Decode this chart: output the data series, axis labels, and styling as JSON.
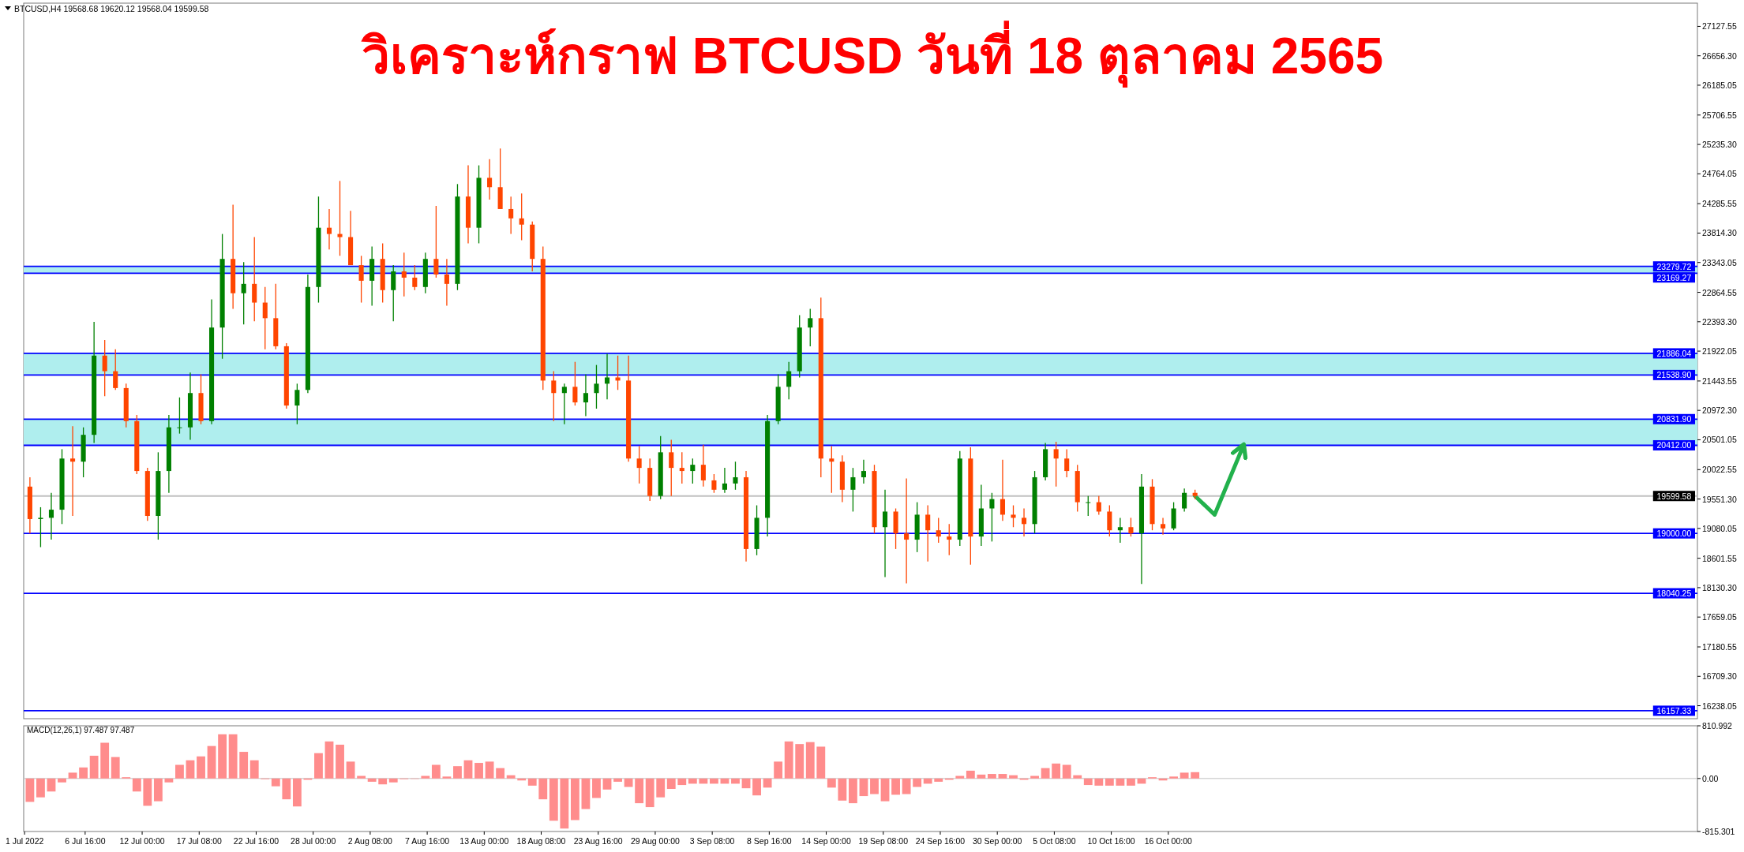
{
  "chart_data": [
    {
      "type": "candlestick",
      "title": "วิเคราะห์กราฟ BTCUSD วันที่ 18 ตุลาคม 2565",
      "annotations": [
        "BTCUSD,H4 19568.68 19620.12 19568.04 19599.58"
      ],
      "x": [
        "2022-07-01T12:00",
        "2022-07-02T12:00",
        "2022-07-03T12:00",
        "2022-07-04T12:00",
        "2022-07-05T12:00",
        "2022-07-06T12:00",
        "2022-07-07T12:00",
        "2022-07-08T12:00",
        "2022-07-09T12:00",
        "2022-07-10T12:00",
        "2022-07-11T12:00",
        "2022-07-12T12:00",
        "2022-07-13T12:00",
        "2022-07-14T12:00",
        "2022-07-15T12:00",
        "2022-07-16T12:00",
        "2022-07-17T12:00",
        "2022-07-18T12:00",
        "2022-07-19T12:00",
        "2022-07-20T12:00",
        "2022-07-21T12:00",
        "2022-07-22T12:00",
        "2022-07-23T12:00",
        "2022-07-24T12:00",
        "2022-07-25T12:00",
        "2022-07-26T12:00",
        "2022-07-27T12:00",
        "2022-07-28T12:00",
        "2022-07-29T12:00",
        "2022-07-30T12:00",
        "2022-07-31T12:00",
        "2022-08-01T12:00",
        "2022-08-02T12:00",
        "2022-08-03T12:00",
        "2022-08-04T12:00",
        "2022-08-05T12:00",
        "2022-08-06T12:00",
        "2022-08-07T12:00",
        "2022-08-08T12:00",
        "2022-08-09T12:00",
        "2022-08-10T12:00",
        "2022-08-11T12:00",
        "2022-08-12T12:00",
        "2022-08-13T12:00",
        "2022-08-14T12:00",
        "2022-08-15T12:00",
        "2022-08-16T12:00",
        "2022-08-17T12:00",
        "2022-08-18T12:00",
        "2022-08-19T12:00",
        "2022-08-20T12:00",
        "2022-08-21T12:00",
        "2022-08-22T12:00",
        "2022-08-23T12:00",
        "2022-08-24T12:00",
        "2022-08-25T12:00",
        "2022-08-26T12:00",
        "2022-08-27T12:00",
        "2022-08-28T12:00",
        "2022-08-29T12:00",
        "2022-08-30T12:00",
        "2022-08-31T12:00",
        "2022-09-01T12:00",
        "2022-09-02T12:00",
        "2022-09-03T12:00",
        "2022-09-04T12:00",
        "2022-09-05T12:00",
        "2022-09-06T12:00",
        "2022-09-07T12:00",
        "2022-09-08T12:00",
        "2022-09-09T12:00",
        "2022-09-10T12:00",
        "2022-09-11T12:00",
        "2022-09-12T12:00",
        "2022-09-13T12:00",
        "2022-09-14T12:00",
        "2022-09-15T12:00",
        "2022-09-16T12:00",
        "2022-09-17T12:00",
        "2022-09-18T12:00",
        "2022-09-19T12:00",
        "2022-09-20T12:00",
        "2022-09-21T12:00",
        "2022-09-22T12:00",
        "2022-09-23T12:00",
        "2022-09-24T12:00",
        "2022-09-25T12:00",
        "2022-09-26T12:00",
        "2022-09-27T12:00",
        "2022-09-28T12:00",
        "2022-09-29T12:00",
        "2022-09-30T12:00",
        "2022-10-01T12:00",
        "2022-10-02T12:00",
        "2022-10-03T12:00",
        "2022-10-04T12:00",
        "2022-10-05T12:00",
        "2022-10-06T12:00",
        "2022-10-07T12:00",
        "2022-10-08T12:00",
        "2022-10-09T12:00",
        "2022-10-10T12:00",
        "2022-10-11T12:00",
        "2022-10-12T12:00",
        "2022-10-13T12:00",
        "2022-10-14T12:00",
        "2022-10-15T12:00",
        "2022-10-16T12:00",
        "2022-10-17T12:00",
        "2022-10-18T12:00"
      ],
      "ohlc": [
        [
          19750,
          19900,
          19000,
          19230
        ],
        [
          19230,
          19420,
          18780,
          19250
        ],
        [
          19250,
          19650,
          18900,
          19380
        ],
        [
          19380,
          20350,
          19150,
          20200
        ],
        [
          20200,
          20720,
          19280,
          20150
        ],
        [
          20150,
          20700,
          19900,
          20580
        ],
        [
          20580,
          22390,
          20450,
          21850
        ],
        [
          21850,
          22100,
          21200,
          21600
        ],
        [
          21600,
          21950,
          21300,
          21330
        ],
        [
          21330,
          21400,
          20700,
          20800
        ],
        [
          20800,
          20900,
          19950,
          20000
        ],
        [
          20000,
          20050,
          19200,
          19280
        ],
        [
          19280,
          20300,
          18900,
          20000
        ],
        [
          20000,
          20900,
          19650,
          20700
        ],
        [
          20700,
          21180,
          20600,
          20700
        ],
        [
          20700,
          21580,
          20500,
          21250
        ],
        [
          21250,
          21550,
          20750,
          20800
        ],
        [
          20800,
          22750,
          20750,
          22300
        ],
        [
          22300,
          23800,
          21800,
          23400
        ],
        [
          23400,
          24270,
          22600,
          22850
        ],
        [
          22850,
          23350,
          22350,
          23000
        ],
        [
          23000,
          23750,
          22400,
          22700
        ],
        [
          22700,
          22950,
          21950,
          22450
        ],
        [
          22450,
          23000,
          21950,
          22000
        ],
        [
          22000,
          22050,
          21000,
          21050
        ],
        [
          21050,
          21400,
          20750,
          21300
        ],
        [
          21300,
          23150,
          21250,
          22950
        ],
        [
          22950,
          24400,
          22700,
          23900
        ],
        [
          23900,
          24200,
          23550,
          23800
        ],
        [
          23800,
          24650,
          23450,
          23750
        ],
        [
          23750,
          24170,
          23300,
          23300
        ],
        [
          23300,
          23450,
          22700,
          23050
        ],
        [
          23050,
          23600,
          22650,
          23400
        ],
        [
          23400,
          23650,
          22700,
          22900
        ],
        [
          22900,
          23300,
          22400,
          23200
        ],
        [
          23200,
          23500,
          22800,
          23100
        ],
        [
          23100,
          23300,
          22900,
          22950
        ],
        [
          22950,
          23500,
          22850,
          23400
        ],
        [
          23400,
          24250,
          23100,
          23150
        ],
        [
          23150,
          23400,
          22650,
          23000
        ],
        [
          23000,
          24600,
          22900,
          24400
        ],
        [
          24400,
          24900,
          23650,
          23900
        ],
        [
          23900,
          24900,
          23650,
          24700
        ],
        [
          24700,
          25000,
          24350,
          24550
        ],
        [
          24550,
          25170,
          24200,
          24200
        ],
        [
          24200,
          24400,
          23800,
          24050
        ],
        [
          24050,
          24450,
          23700,
          23950
        ],
        [
          23950,
          24000,
          23200,
          23400
        ],
        [
          23400,
          23600,
          21300,
          21450
        ],
        [
          21450,
          21600,
          20800,
          21250
        ],
        [
          21250,
          21400,
          20750,
          21350
        ],
        [
          21350,
          21750,
          21050,
          21100
        ],
        [
          21100,
          21550,
          20880,
          21250
        ],
        [
          21250,
          21700,
          21000,
          21400
        ],
        [
          21400,
          21880,
          21150,
          21500
        ],
        [
          21500,
          21850,
          21300,
          21450
        ],
        [
          21450,
          21850,
          20150,
          20200
        ],
        [
          20200,
          20400,
          19800,
          20050
        ],
        [
          20050,
          20200,
          19520,
          19600
        ],
        [
          19600,
          20560,
          19550,
          20300
        ],
        [
          20300,
          20500,
          19600,
          20050
        ],
        [
          20050,
          20300,
          19800,
          20000
        ],
        [
          20000,
          20200,
          19800,
          20100
        ],
        [
          20100,
          20420,
          19750,
          19850
        ],
        [
          19850,
          19950,
          19650,
          19700
        ],
        [
          19700,
          20050,
          19650,
          19800
        ],
        [
          19800,
          20150,
          19700,
          19900
        ],
        [
          19900,
          20000,
          18550,
          18750
        ],
        [
          18750,
          19450,
          18650,
          19250
        ],
        [
          19250,
          20900,
          18950,
          20800
        ],
        [
          20800,
          21550,
          20750,
          21350
        ],
        [
          21350,
          21750,
          21150,
          21600
        ],
        [
          21600,
          22500,
          21500,
          22300
        ],
        [
          22300,
          22600,
          22000,
          22450
        ],
        [
          22450,
          22780,
          19900,
          20200
        ],
        [
          20200,
          20400,
          19650,
          20150
        ],
        [
          20150,
          20250,
          19500,
          19700
        ],
        [
          19700,
          20050,
          19350,
          19900
        ],
        [
          19900,
          20180,
          19800,
          20000
        ],
        [
          20000,
          20100,
          19000,
          19100
        ],
        [
          19100,
          19700,
          18300,
          19350
        ],
        [
          19350,
          19400,
          18750,
          19000
        ],
        [
          19000,
          19880,
          18200,
          18900
        ],
        [
          18900,
          19500,
          18700,
          19300
        ],
        [
          19300,
          19450,
          18550,
          19050
        ],
        [
          19050,
          19250,
          18850,
          18950
        ],
        [
          18950,
          19150,
          18650,
          18900
        ],
        [
          18900,
          20320,
          18800,
          20200
        ],
        [
          20200,
          20380,
          18500,
          18950
        ],
        [
          18950,
          19780,
          18800,
          19400
        ],
        [
          19400,
          19650,
          18870,
          19550
        ],
        [
          19550,
          20180,
          19200,
          19300
        ],
        [
          19300,
          19450,
          19100,
          19250
        ],
        [
          19250,
          19400,
          18950,
          19150
        ],
        [
          19150,
          20000,
          19000,
          19900
        ],
        [
          19900,
          20450,
          19850,
          20350
        ],
        [
          20350,
          20470,
          19750,
          20200
        ],
        [
          20200,
          20350,
          19900,
          20000
        ],
        [
          20000,
          20100,
          19350,
          19500
        ],
        [
          19500,
          19600,
          19280,
          19500
        ],
        [
          19500,
          19600,
          19300,
          19350
        ],
        [
          19350,
          19450,
          18950,
          19050
        ],
        [
          19050,
          19250,
          18850,
          19100
        ],
        [
          19100,
          19250,
          18950,
          19000
        ],
        [
          19000,
          19950,
          18190,
          19750
        ],
        [
          19750,
          19870,
          19050,
          19150
        ],
        [
          19150,
          19250,
          18980,
          19080
        ],
        [
          19080,
          19500,
          19050,
          19400
        ],
        [
          19400,
          19720,
          19350,
          19650
        ],
        [
          19650,
          19700,
          19550,
          19600
        ]
      ],
      "colors": [
        "#ff4500",
        "#008000",
        "#008000",
        "#008000",
        "#ff4500",
        "#008000",
        "#008000",
        "#ff4500",
        "#ff4500",
        "#ff4500",
        "#ff4500",
        "#ff4500",
        "#008000",
        "#008000",
        "#008000",
        "#008000",
        "#ff4500",
        "#008000",
        "#008000",
        "#ff4500",
        "#008000",
        "#ff4500",
        "#ff4500",
        "#ff4500",
        "#ff4500",
        "#008000",
        "#008000",
        "#008000",
        "#ff4500",
        "#ff4500",
        "#ff4500",
        "#ff4500",
        "#008000",
        "#ff4500",
        "#008000",
        "#ff4500",
        "#ff4500",
        "#008000",
        "#ff4500",
        "#ff4500",
        "#008000",
        "#ff4500",
        "#008000",
        "#ff4500",
        "#ff4500",
        "#ff4500",
        "#ff4500",
        "#ff4500",
        "#ff4500",
        "#ff4500",
        "#008000",
        "#ff4500",
        "#008000",
        "#008000",
        "#008000",
        "#ff4500",
        "#ff4500",
        "#ff4500",
        "#ff4500",
        "#008000",
        "#ff4500",
        "#ff4500",
        "#008000",
        "#ff4500",
        "#ff4500",
        "#008000",
        "#008000",
        "#ff4500",
        "#008000",
        "#008000",
        "#008000",
        "#008000",
        "#008000",
        "#008000",
        "#ff4500",
        "#ff4500",
        "#ff4500",
        "#008000",
        "#008000",
        "#ff4500",
        "#008000",
        "#ff4500",
        "#ff4500",
        "#008000",
        "#ff4500",
        "#ff4500",
        "#ff4500",
        "#008000",
        "#ff4500",
        "#008000",
        "#008000",
        "#ff4500",
        "#ff4500",
        "#ff4500",
        "#008000",
        "#008000",
        "#ff4500",
        "#ff4500",
        "#ff4500",
        "#008000",
        "#ff4500",
        "#ff4500",
        "#008000",
        "#ff4500",
        "#008000",
        "#ff4500",
        "#ff4500",
        "#008000",
        "#008000",
        "#ff4500"
      ],
      "series": [
        {
          "type": "line",
          "x": [
            "2022-10-18T12:00",
            "2022-10-20T08:00",
            "2022-10-23T00:00"
          ],
          "values": [
            19600,
            19300,
            20400
          ],
          "color": "#22b14c",
          "line_style": "solid"
        }
      ],
      "xlim": [
        "2022-06-30T22:00",
        "2022-12-04T12:00"
      ],
      "ylim": [
        16030,
        27500
      ],
      "yticks": [
        16238.05,
        {
          "value": 16709.3,
          "label": "16709.30"
        },
        17180.55,
        17659.05,
        {
          "value": 18130.3,
          "label": "18130.30"
        },
        18601.55,
        19080.05,
        {
          "value": 19551.3,
          "label": "19551.30"
        },
        20022.55,
        20501.05,
        {
          "value": 20972.3,
          "label": "20972.30"
        },
        21443.55,
        21922.05,
        {
          "value": 22393.3,
          "label": "22393.30"
        },
        22864.55,
        23343.05,
        {
          "value": 23814.3,
          "label": "23814.30"
        },
        24285.55,
        24764.05,
        {
          "value": 25235.3,
          "label": "25235.30"
        },
        25706.55,
        26185.05,
        {
          "value": 26656.3,
          "label": "26656.30"
        },
        27127.55
      ],
      "tick_labels": "y",
      "ref_lines": [
        {
          "axis": "y",
          "value": 23279.72,
          "label": "23279.72",
          "color": "#0000ff"
        },
        {
          "axis": "y",
          "value": 23169.27,
          "label": "23169.27",
          "color": "#0000ff"
        },
        {
          "axis": "y",
          "value": 21886.04,
          "label": "21886.04",
          "color": "#0000ff"
        },
        {
          "axis": "y",
          "value": 21538.9,
          "label": "21538.90",
          "color": "#0000ff"
        },
        {
          "axis": "y",
          "value": 20831.9,
          "label": "20831.90",
          "color": "#0000ff"
        },
        {
          "axis": "y",
          "value": 20412,
          "label": "20412.00",
          "color": "#0000ff"
        },
        {
          "axis": "y",
          "value": 19599.58,
          "label": "19599.58",
          "color": "#c0c0c0"
        },
        {
          "axis": "y",
          "value": 19000,
          "label": "19000.00",
          "color": "#0000ff"
        },
        {
          "axis": "y",
          "value": 18040.25,
          "label": "18040.25",
          "color": "#0000ff"
        },
        {
          "axis": "y",
          "value": 16157.33,
          "label": "16157.33",
          "color": "#0000ff"
        }
      ],
      "bands": [
        {
          "axis": "y",
          "from": 23169.27,
          "to": 23279.72,
          "color": "#afeeee"
        },
        {
          "axis": "y",
          "from": 21538.9,
          "to": 21886.04,
          "color": "#afeeee"
        },
        {
          "axis": "y",
          "from": 20412,
          "to": 20831.9,
          "color": "#afeeee"
        }
      ]
    },
    {
      "type": "bar",
      "title": "MACD(12,26,1) 97.487 97.487",
      "x": [
        "2022-07-01T12:00",
        "2022-07-02T12:00",
        "2022-07-03T12:00",
        "2022-07-04T12:00",
        "2022-07-05T12:00",
        "2022-07-06T12:00",
        "2022-07-07T12:00",
        "2022-07-08T12:00",
        "2022-07-09T12:00",
        "2022-07-10T12:00",
        "2022-07-11T12:00",
        "2022-07-12T12:00",
        "2022-07-13T12:00",
        "2022-07-14T12:00",
        "2022-07-15T12:00",
        "2022-07-16T12:00",
        "2022-07-17T12:00",
        "2022-07-18T12:00",
        "2022-07-19T12:00",
        "2022-07-20T12:00",
        "2022-07-21T12:00",
        "2022-07-22T12:00",
        "2022-07-23T12:00",
        "2022-07-24T12:00",
        "2022-07-25T12:00",
        "2022-07-26T12:00",
        "2022-07-27T12:00",
        "2022-07-28T12:00",
        "2022-07-29T12:00",
        "2022-07-30T12:00",
        "2022-07-31T12:00",
        "2022-08-01T12:00",
        "2022-08-02T12:00",
        "2022-08-03T12:00",
        "2022-08-04T12:00",
        "2022-08-05T12:00",
        "2022-08-06T12:00",
        "2022-08-07T12:00",
        "2022-08-08T12:00",
        "2022-08-09T12:00",
        "2022-08-10T12:00",
        "2022-08-11T12:00",
        "2022-08-12T12:00",
        "2022-08-13T12:00",
        "2022-08-14T12:00",
        "2022-08-15T12:00",
        "2022-08-16T12:00",
        "2022-08-17T12:00",
        "2022-08-18T12:00",
        "2022-08-19T12:00",
        "2022-08-20T12:00",
        "2022-08-21T12:00",
        "2022-08-22T12:00",
        "2022-08-23T12:00",
        "2022-08-24T12:00",
        "2022-08-25T12:00",
        "2022-08-26T12:00",
        "2022-08-27T12:00",
        "2022-08-28T12:00",
        "2022-08-29T12:00",
        "2022-08-30T12:00",
        "2022-08-31T12:00",
        "2022-09-01T12:00",
        "2022-09-02T12:00",
        "2022-09-03T12:00",
        "2022-09-04T12:00",
        "2022-09-05T12:00",
        "2022-09-06T12:00",
        "2022-09-07T12:00",
        "2022-09-08T12:00",
        "2022-09-09T12:00",
        "2022-09-10T12:00",
        "2022-09-11T12:00",
        "2022-09-12T12:00",
        "2022-09-13T12:00",
        "2022-09-14T12:00",
        "2022-09-15T12:00",
        "2022-09-16T12:00",
        "2022-09-17T12:00",
        "2022-09-18T12:00",
        "2022-09-19T12:00",
        "2022-09-20T12:00",
        "2022-09-21T12:00",
        "2022-09-22T12:00",
        "2022-09-23T12:00",
        "2022-09-24T12:00",
        "2022-09-25T12:00",
        "2022-09-26T12:00",
        "2022-09-27T12:00",
        "2022-09-28T12:00",
        "2022-09-29T12:00",
        "2022-09-30T12:00",
        "2022-10-01T12:00",
        "2022-10-02T12:00",
        "2022-10-03T12:00",
        "2022-10-04T12:00",
        "2022-10-05T12:00",
        "2022-10-06T12:00",
        "2022-10-07T12:00",
        "2022-10-08T12:00",
        "2022-10-09T12:00",
        "2022-10-10T12:00",
        "2022-10-11T12:00",
        "2022-10-12T12:00",
        "2022-10-13T12:00",
        "2022-10-14T12:00",
        "2022-10-15T12:00",
        "2022-10-16T12:00",
        "2022-10-17T12:00",
        "2022-10-18T12:00"
      ],
      "values": [
        -360,
        -290,
        -200,
        -60,
        90,
        170,
        350,
        550,
        330,
        20,
        -200,
        -420,
        -350,
        -60,
        210,
        280,
        340,
        500,
        680,
        680,
        410,
        280,
        -10,
        -120,
        -320,
        -430,
        -20,
        390,
        570,
        520,
        260,
        40,
        -50,
        -90,
        -60,
        -10,
        0,
        40,
        210,
        30,
        190,
        280,
        240,
        260,
        160,
        50,
        -30,
        -110,
        -320,
        -650,
        -770,
        -640,
        -470,
        -300,
        -170,
        -50,
        -130,
        -380,
        -440,
        -290,
        -160,
        -100,
        -80,
        -80,
        -80,
        -80,
        -80,
        -150,
        -260,
        -140,
        260,
        570,
        530,
        560,
        490,
        -140,
        -340,
        -380,
        -270,
        -240,
        -350,
        -250,
        -240,
        -130,
        -80,
        -50,
        -20,
        40,
        120,
        60,
        70,
        70,
        50,
        -20,
        40,
        160,
        230,
        210,
        50,
        -100,
        -110,
        -110,
        -110,
        -110,
        -80,
        20,
        -30,
        30,
        90,
        97.487
      ],
      "color": "#ff8c8c",
      "xlim": [
        "2022-06-30T22:00",
        "2022-12-04T12:00"
      ],
      "ylim": [
        -815.301,
        810.992
      ],
      "yticks": [
        -815.301,
        {
          "value": 0,
          "label": "0.00"
        },
        810.992
      ],
      "xticks": [
        {
          "value": "2022-07-01T00:00",
          "label": "1 Jul 2022"
        },
        {
          "value": "2022-07-06T16:00",
          "label": "6 Jul 16:00"
        },
        {
          "value": "2022-07-12T00:00",
          "label": "12 Jul 00:00"
        },
        {
          "value": "2022-07-17T08:00",
          "label": "17 Jul 08:00"
        },
        {
          "value": "2022-07-22T16:00",
          "label": "22 Jul 16:00"
        },
        {
          "value": "2022-07-28T00:00",
          "label": "28 Jul 00:00"
        },
        {
          "value": "2022-08-02T08:00",
          "label": "2 Aug 08:00"
        },
        {
          "value": "2022-08-07T16:00",
          "label": "7 Aug 16:00"
        },
        {
          "value": "2022-08-13T00:00",
          "label": "13 Aug 00:00"
        },
        {
          "value": "2022-08-18T08:00",
          "label": "18 Aug 08:00"
        },
        {
          "value": "2022-08-23T16:00",
          "label": "23 Aug 16:00"
        },
        {
          "value": "2022-08-29T00:00",
          "label": "29 Aug 00:00"
        },
        {
          "value": "2022-09-03T08:00",
          "label": "3 Sep 08:00"
        },
        {
          "value": "2022-09-08T16:00",
          "label": "8 Sep 16:00"
        },
        {
          "value": "2022-09-14T00:00",
          "label": "14 Sep 00:00"
        },
        {
          "value": "2022-09-19T08:00",
          "label": "19 Sep 08:00"
        },
        {
          "value": "2022-09-24T16:00",
          "label": "24 Sep 16:00"
        },
        {
          "value": "2022-09-30T00:00",
          "label": "30 Sep 00:00"
        },
        {
          "value": "2022-10-05T08:00",
          "label": "5 Oct 08:00"
        },
        {
          "value": "2022-10-10T16:00",
          "label": "10 Oct 16:00"
        },
        {
          "value": "2022-10-16T00:00",
          "label": "16 Oct 00:00"
        }
      ],
      "ref_lines": [
        {
          "axis": "y",
          "value": 0,
          "color": "#c0c0c0"
        }
      ]
    }
  ]
}
